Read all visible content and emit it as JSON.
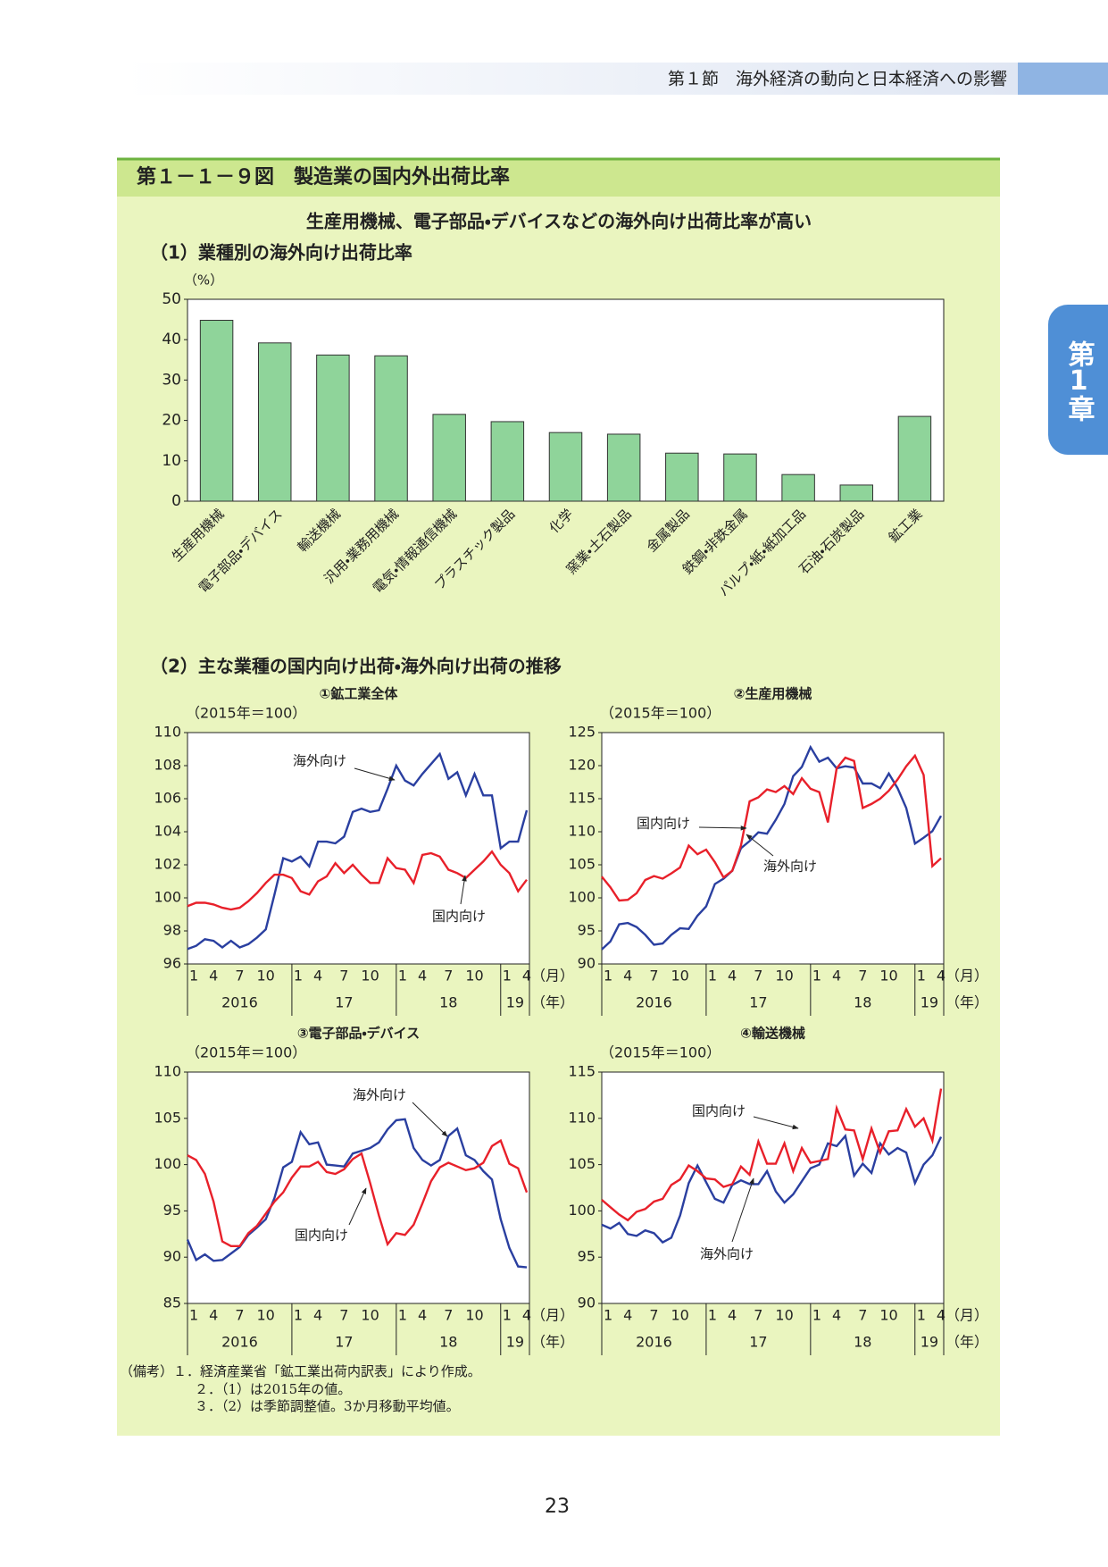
{
  "header": {
    "section": "第１節　海外経済の動向と日本経済への影響",
    "side_tab": "第1章"
  },
  "figure": {
    "title": "第１－１－９図　製造業の国内外出荷比率",
    "subtitle": "生産用機械、電子部品・デバイスなどの海外向け出荷比率が高い",
    "part1": "（1）業種別の海外向け出荷比率",
    "part2": "（2）主な業種の国内向け出荷・海外向け出荷の推移"
  },
  "chart_data": [
    {
      "type": "bar",
      "y_label": "（%）",
      "color": "#8fd49a",
      "categories": [
        "生産用機械",
        "電子部品・デバイス",
        "輸送機械",
        "汎用・業務用機械",
        "電気・情報通信機械",
        "プラスチック製品",
        "化学",
        "窯業・土石製品",
        "金属製品",
        "鉄鋼・非鉄金属",
        "パルプ・紙・紙加工品",
        "石油・石炭製品",
        "鉱工業"
      ],
      "values": [
        44.8,
        39.2,
        36.2,
        36.0,
        21.5,
        19.7,
        17.0,
        16.6,
        11.9,
        11.7,
        6.6,
        4.0,
        21.0
      ],
      "ylim": [
        0,
        50
      ],
      "yticks": [
        0,
        10,
        20,
        30,
        40,
        50
      ],
      "grid": false
    },
    {
      "type": "line",
      "title": "①鉱工業全体",
      "y_label": "（2015年＝100）",
      "categories": [
        "1",
        null,
        null,
        "4",
        null,
        null,
        "7",
        null,
        null,
        "10",
        null,
        null,
        "1",
        null,
        null,
        "4",
        null,
        null,
        "7",
        null,
        null,
        "10",
        null,
        null,
        "1",
        null,
        null,
        "4",
        null,
        null,
        "7",
        null,
        null,
        "10",
        null,
        null,
        "1",
        null,
        null,
        "4"
      ],
      "year_labels": [
        "2016",
        "17",
        "18",
        "19"
      ],
      "x_unit": "（月）",
      "year_unit": "（年）",
      "ylim": [
        96,
        110
      ],
      "yticks": [
        96,
        98,
        100,
        102,
        104,
        106,
        108,
        110
      ],
      "series": [
        {
          "name": "海外向け",
          "color": "#2a3fa0",
          "values": [
            96.9,
            97.1,
            97.5,
            97.4,
            97.0,
            97.4,
            97.0,
            97.2,
            97.6,
            98.1,
            100.2,
            102.4,
            102.2,
            102.5,
            101.9,
            103.4,
            103.4,
            103.3,
            103.7,
            105.2,
            105.4,
            105.2,
            105.3,
            106.6,
            108.0,
            107.1,
            106.8,
            107.5,
            108.1,
            108.7,
            107.2,
            107.6,
            106.2,
            107.5,
            106.2,
            106.2,
            103.0,
            103.4,
            103.4,
            105.3
          ]
        },
        {
          "name": "国内向け",
          "color": "#e8202a",
          "values": [
            99.5,
            99.7,
            99.7,
            99.6,
            99.4,
            99.3,
            99.4,
            99.8,
            100.3,
            100.9,
            101.4,
            101.4,
            101.2,
            100.4,
            100.2,
            101.0,
            101.3,
            102.1,
            101.5,
            102.0,
            101.4,
            100.9,
            100.9,
            102.4,
            101.8,
            101.7,
            100.9,
            102.6,
            102.7,
            102.5,
            101.7,
            101.5,
            101.2,
            101.7,
            102.2,
            102.8,
            102.0,
            101.5,
            100.4,
            101.1
          ]
        }
      ]
    },
    {
      "type": "line",
      "title": "②生産用機械",
      "y_label": "（2015年＝100）",
      "categories": [
        "1",
        null,
        null,
        "4",
        null,
        null,
        "7",
        null,
        null,
        "10",
        null,
        null,
        "1",
        null,
        null,
        "4",
        null,
        null,
        "7",
        null,
        null,
        "10",
        null,
        null,
        "1",
        null,
        null,
        "4",
        null,
        null,
        "7",
        null,
        null,
        "10",
        null,
        null,
        "1",
        null,
        null,
        "4"
      ],
      "year_labels": [
        "2016",
        "17",
        "18",
        "19"
      ],
      "x_unit": "（月）",
      "year_unit": "（年）",
      "ylim": [
        90,
        125
      ],
      "yticks": [
        90,
        95,
        100,
        105,
        110,
        115,
        120,
        125
      ],
      "series": [
        {
          "name": "海外向け",
          "color": "#2a3fa0",
          "values": [
            92.2,
            93.4,
            96.0,
            96.2,
            95.6,
            94.4,
            92.9,
            93.1,
            94.4,
            95.4,
            95.3,
            97.3,
            98.7,
            102.1,
            102.9,
            104.1,
            107.5,
            108.6,
            109.9,
            109.7,
            111.8,
            114.2,
            118.4,
            119.8,
            122.8,
            120.6,
            121.2,
            119.6,
            119.9,
            119.7,
            117.3,
            117.3,
            116.6,
            118.8,
            116.6,
            113.6,
            108.2,
            109.1,
            110.1,
            112.4
          ]
        },
        {
          "name": "国内向け",
          "color": "#e8202a",
          "values": [
            103.2,
            101.6,
            99.6,
            99.7,
            100.7,
            102.7,
            103.3,
            102.9,
            103.7,
            104.6,
            107.9,
            106.6,
            107.3,
            105.4,
            103.1,
            104.1,
            107.9,
            114.6,
            115.2,
            116.4,
            116.0,
            116.9,
            115.7,
            118.1,
            116.5,
            116.0,
            111.4,
            119.6,
            121.2,
            120.7,
            113.6,
            114.2,
            115.0,
            116.2,
            117.9,
            119.9,
            121.5,
            118.6,
            104.8,
            106.0
          ]
        }
      ]
    },
    {
      "type": "line",
      "title": "③電子部品・デバイス",
      "y_label": "（2015年＝100）",
      "categories": [
        "1",
        null,
        null,
        "4",
        null,
        null,
        "7",
        null,
        null,
        "10",
        null,
        null,
        "1",
        null,
        null,
        "4",
        null,
        null,
        "7",
        null,
        null,
        "10",
        null,
        null,
        "1",
        null,
        null,
        "4",
        null,
        null,
        "7",
        null,
        null,
        "10",
        null,
        null,
        "1",
        null,
        null,
        "4"
      ],
      "year_labels": [
        "2016",
        "17",
        "18",
        "19"
      ],
      "x_unit": "（月）",
      "year_unit": "（年）",
      "ylim": [
        85,
        110
      ],
      "yticks": [
        85,
        90,
        95,
        100,
        105,
        110
      ],
      "series": [
        {
          "name": "海外向け",
          "color": "#2a3fa0",
          "values": [
            91.9,
            89.7,
            90.3,
            89.6,
            89.7,
            90.4,
            91.1,
            92.4,
            93.2,
            94.1,
            96.4,
            99.7,
            100.3,
            103.5,
            102.2,
            102.4,
            100.0,
            99.9,
            99.8,
            101.2,
            101.5,
            101.8,
            102.4,
            103.8,
            104.8,
            104.9,
            101.8,
            100.5,
            99.9,
            100.5,
            103.1,
            103.9,
            101.0,
            100.5,
            99.3,
            98.4,
            94.1,
            91.0,
            89.0,
            88.9
          ]
        },
        {
          "name": "国内向け",
          "color": "#e8202a",
          "values": [
            101.0,
            100.5,
            99.0,
            96.0,
            91.7,
            91.2,
            91.2,
            92.6,
            93.4,
            94.7,
            96.0,
            97.0,
            98.6,
            99.8,
            99.8,
            100.3,
            99.2,
            99.0,
            99.5,
            100.6,
            101.2,
            98.0,
            94.5,
            91.4,
            92.6,
            92.4,
            93.5,
            95.8,
            98.2,
            99.7,
            100.2,
            99.8,
            99.4,
            99.6,
            100.2,
            102.0,
            102.6,
            100.1,
            99.6,
            97.0
          ]
        }
      ]
    },
    {
      "type": "line",
      "title": "④輸送機械",
      "y_label": "（2015年＝100）",
      "categories": [
        "1",
        null,
        null,
        "4",
        null,
        null,
        "7",
        null,
        null,
        "10",
        null,
        null,
        "1",
        null,
        null,
        "4",
        null,
        null,
        "7",
        null,
        null,
        "10",
        null,
        null,
        "1",
        null,
        null,
        "4",
        null,
        null,
        "7",
        null,
        null,
        "10",
        null,
        null,
        "1",
        null,
        null,
        "4"
      ],
      "year_labels": [
        "2016",
        "17",
        "18",
        "19"
      ],
      "x_unit": "（月）",
      "year_unit": "（年）",
      "ylim": [
        90,
        115
      ],
      "yticks": [
        90,
        95,
        100,
        105,
        110,
        115
      ],
      "series": [
        {
          "name": "海外向け",
          "color": "#2a3fa0",
          "values": [
            98.5,
            98.1,
            98.7,
            97.5,
            97.3,
            97.9,
            97.6,
            96.6,
            97.1,
            99.5,
            103.0,
            104.9,
            103.1,
            101.3,
            100.9,
            102.8,
            103.3,
            102.9,
            102.9,
            104.3,
            102.1,
            100.9,
            101.8,
            103.2,
            104.6,
            105.0,
            107.3,
            107.0,
            108.1,
            103.8,
            105.1,
            104.1,
            107.3,
            106.1,
            106.8,
            106.3,
            103.0,
            105.0,
            106.0,
            108.0
          ]
        },
        {
          "name": "国内向け",
          "color": "#e8202a",
          "values": [
            101.2,
            100.4,
            99.6,
            99.0,
            99.9,
            100.2,
            101.0,
            101.3,
            102.8,
            103.4,
            104.9,
            104.3,
            103.5,
            103.4,
            102.6,
            102.9,
            104.8,
            103.9,
            107.5,
            105.1,
            105.1,
            107.3,
            104.3,
            106.8,
            105.2,
            105.4,
            105.6,
            111.1,
            108.8,
            108.7,
            105.6,
            108.9,
            106.3,
            108.6,
            108.7,
            111.0,
            109.1,
            110.0,
            107.6,
            113.2
          ]
        }
      ]
    }
  ],
  "notes": [
    "（備考）１．経済産業省「鉱工業出荷内訳表」により作成。",
    "２．（1）は2015年の値。",
    "３．（2）は季節調整値。3か月移動平均値。"
  ],
  "page_number": "23"
}
